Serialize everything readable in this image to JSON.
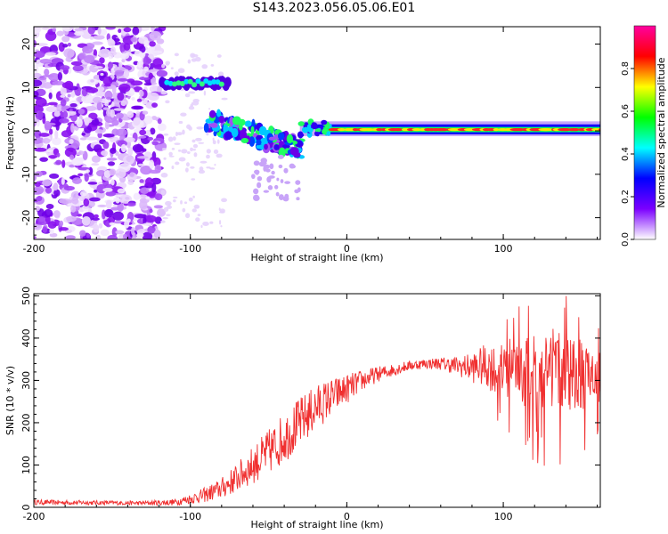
{
  "title": "S143.2023.056.05.06.E01",
  "chart_data": [
    {
      "type": "heatmap",
      "xlabel": "Height of straight line (km)",
      "ylabel": "Frequency (Hz)",
      "xlim": [
        -200,
        162
      ],
      "ylim": [
        -25,
        24
      ],
      "xticks": [
        -200,
        -100,
        0,
        100
      ],
      "yticks": [
        -20,
        -10,
        0,
        10,
        20
      ],
      "colorbar": {
        "label": "Normalized spectral amplitude",
        "range": [
          0,
          1
        ],
        "ticks": [
          "0.0",
          "0.2",
          "0.4",
          "0.6",
          "0.8"
        ],
        "colors": [
          "#ffffff",
          "#7b00ff",
          "#0000ff",
          "#00ffff",
          "#00ff00",
          "#ffff00",
          "#ff0000",
          "#ff00a0"
        ]
      },
      "features": [
        {
          "region": "noise",
          "x": [
            -200,
            -118
          ],
          "y": [
            -25,
            24
          ],
          "amplitude": 0.15
        },
        {
          "region": "band",
          "x": [
            -118,
            -75
          ],
          "y": [
            10,
            12
          ],
          "amplitude": 0.45
        },
        {
          "region": "descending",
          "x": [
            -90,
            -30
          ],
          "y": [
            -5,
            3
          ],
          "amplitude": 0.5
        },
        {
          "region": "line",
          "x": [
            -30,
            162
          ],
          "y": [
            -0.5,
            1.5
          ],
          "amplitude": 0.9
        }
      ]
    },
    {
      "type": "line",
      "xlabel": "Height of straight line (km)",
      "ylabel": "SNR (10 * v/v)",
      "xlim": [
        -200,
        162
      ],
      "ylim": [
        0,
        505
      ],
      "xticks": [
        -200,
        -100,
        0,
        100
      ],
      "yticks": [
        0,
        100,
        200,
        300,
        400,
        500
      ],
      "color": "#f03030",
      "envelope": {
        "x": [
          -200,
          -130,
          -110,
          -100,
          -90,
          -80,
          -70,
          -60,
          -50,
          -40,
          -30,
          -20,
          -10,
          0,
          10,
          20,
          30,
          40,
          50,
          60,
          70,
          80,
          90,
          100,
          110,
          120,
          130,
          140,
          150,
          162
        ],
        "y": [
          12,
          10,
          12,
          20,
          30,
          45,
          70,
          100,
          130,
          165,
          200,
          235,
          260,
          280,
          300,
          315,
          325,
          335,
          340,
          340,
          335,
          330,
          335,
          320,
          330,
          320,
          330,
          320,
          310,
          300
        ],
        "spread": [
          6,
          5,
          8,
          12,
          18,
          25,
          35,
          45,
          55,
          60,
          60,
          55,
          45,
          35,
          25,
          18,
          15,
          12,
          12,
          15,
          22,
          35,
          55,
          70,
          85,
          90,
          95,
          90,
          85,
          70
        ]
      }
    }
  ]
}
